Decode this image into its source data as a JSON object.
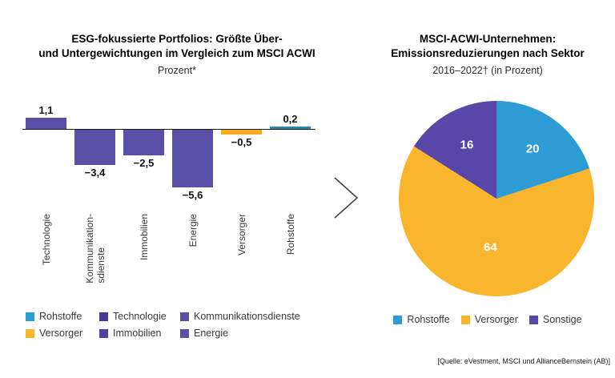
{
  "page": {
    "background": "#ffffff",
    "source_note": "[Quelle: eVestment, MSCI und AllianceBernstein (AB)]"
  },
  "icons": {
    "arrow": "chevron-right"
  },
  "chart_data": [
    {
      "type": "bar",
      "title_line1": "ESG-fokussierte Portfolios: Größte Über-",
      "title_line2": "und Untergewichtungen im Vergleich zum MSCI ACWI",
      "subtitle": "Prozent*",
      "xlabel": "",
      "ylabel": "",
      "categories": [
        "Technologie",
        "Kommunikation-\nsdienste",
        "Immobilien",
        "Energie",
        "Versorger",
        "Rohstoffe"
      ],
      "values": [
        1.1,
        -3.4,
        -2.5,
        -5.6,
        -0.5,
        0.2
      ],
      "value_labels": [
        "1,1",
        "−3,4",
        "−2,5",
        "−5,6",
        "−0,5",
        "0,2"
      ],
      "bar_colors": [
        "#5a50a7",
        "#5a50a7",
        "#5a50a7",
        "#5a50a7",
        "#f6ad21",
        "#2e86b0"
      ],
      "baseline": 0,
      "ylim": [
        -6.5,
        2
      ],
      "grid": false,
      "legend_position": "bottom",
      "legend": [
        {
          "label": "Rohstoffe",
          "color": "#2e9cd4"
        },
        {
          "label": "Technologie",
          "color": "#453b91"
        },
        {
          "label": "Kommunikationsdienste",
          "color": "#5a50a7"
        },
        {
          "label": "Versorger",
          "color": "#f9b52e"
        },
        {
          "label": "Immobilien",
          "color": "#4c42a0"
        },
        {
          "label": "Energie",
          "color": "#5a50a7"
        }
      ]
    },
    {
      "type": "pie",
      "title_line1": "MSCI-ACWI-Unternehmen:",
      "title_line2": "Emissionsreduzierungen nach Sektor",
      "subtitle": "2016–2022† (in Prozent)",
      "start_angle_deg": 0,
      "direction": "clockwise",
      "slices": [
        {
          "label": "Rohstoffe",
          "value": 20,
          "value_label": "20",
          "color": "#2e9cd4"
        },
        {
          "label": "Versorger",
          "value": 64,
          "value_label": "64",
          "color": "#f9b52e"
        },
        {
          "label": "Sonstige",
          "value": 16,
          "value_label": "16",
          "color": "#5847a8"
        }
      ],
      "legend_position": "bottom"
    }
  ]
}
